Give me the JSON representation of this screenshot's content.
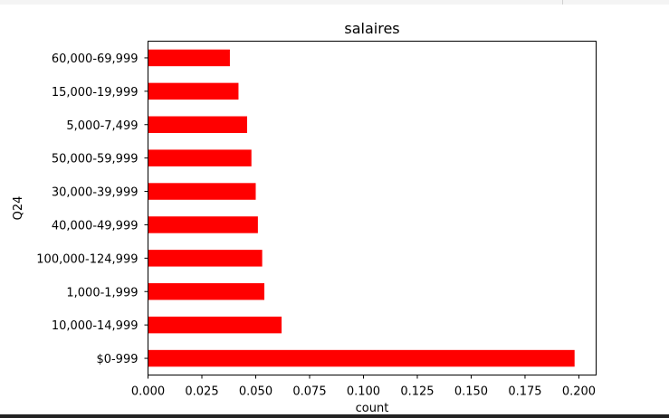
{
  "chart_data": {
    "type": "bar",
    "orientation": "horizontal",
    "title": "salaires",
    "xlabel": "count",
    "ylabel": "Q24",
    "categories": [
      "$0-999",
      "10,000-14,999",
      "1,000-1,999",
      "100,000-124,999",
      "40,000-49,999",
      "30,000-39,999",
      "50,000-59,999",
      "5,000-7,499",
      "15,000-19,999",
      "60,000-69,999"
    ],
    "values": [
      0.198,
      0.062,
      0.054,
      0.053,
      0.051,
      0.05,
      0.048,
      0.046,
      0.042,
      0.038
    ],
    "xlim": [
      0,
      0.208
    ],
    "xticks": [
      0.0,
      0.025,
      0.05,
      0.075,
      0.1,
      0.125,
      0.15,
      0.175,
      0.2
    ],
    "xtick_labels": [
      "0.000",
      "0.025",
      "0.050",
      "0.075",
      "0.100",
      "0.125",
      "0.150",
      "0.175",
      "0.200"
    ],
    "bar_color": "#ff0000",
    "grid": false,
    "legend": "none"
  }
}
